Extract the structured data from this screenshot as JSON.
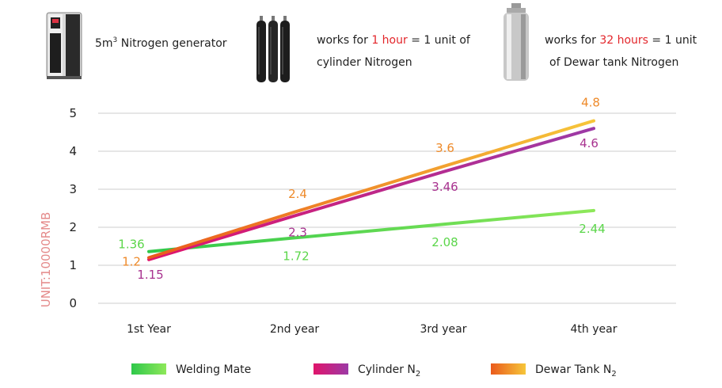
{
  "header": {
    "generator_label_prefix": "5m",
    "generator_label_sup": "3",
    "generator_label_suffix": " Nitrogen generator",
    "cylinder_text_a": "works for ",
    "cylinder_text_highlight": "1 hour",
    "cylinder_text_b": " = 1 unit of",
    "cylinder_text_line2": "cylinder Nitrogen",
    "dewar_text_a": "works for ",
    "dewar_text_highlight": "32 hours",
    "dewar_text_b": " = 1 unit",
    "dewar_text_line2": "of Dewar tank Nitrogen"
  },
  "colors": {
    "highlight": "#e3262b",
    "welding": "#6ee04f",
    "cylinder": "#c0308e",
    "dewar": "#f3a229",
    "grid": "#d6d6d6",
    "ylabel": "#e48a8a"
  },
  "chart_data": {
    "type": "line",
    "categories": [
      "1st Year",
      "2nd year",
      "3rd year",
      "4th year"
    ],
    "ylabel": "UNIT:10000RMB",
    "ylim": [
      0,
      5
    ],
    "yticks": [
      "0",
      "1",
      "2",
      "3",
      "4",
      "5"
    ],
    "grid": true,
    "legend": "bottom",
    "series": [
      {
        "name": "Welding Mate",
        "sub": "",
        "values": [
          1.36,
          1.72,
          2.08,
          2.44
        ],
        "labels": [
          "1.36",
          "1.72",
          "2.08",
          "2.44"
        ],
        "color_start": "#2fc84a",
        "color_end": "#8ee85a",
        "label_color": "#5bd64a"
      },
      {
        "name": "Cylinder N",
        "sub": "2",
        "values": [
          1.15,
          2.3,
          3.46,
          4.6
        ],
        "labels": [
          "1.15",
          "2.3",
          "3.46",
          "4.6"
        ],
        "color_start": "#e0146b",
        "color_end": "#9c3aa6",
        "label_color": "#a8328f"
      },
      {
        "name": "Dewar Tank N",
        "sub": "2",
        "values": [
          1.2,
          2.4,
          3.6,
          4.8
        ],
        "labels": [
          "1.2",
          "2.4",
          "3.6",
          "4.8"
        ],
        "color_start": "#ea5a1c",
        "color_end": "#f6c63a",
        "label_color": "#ee8a2a"
      }
    ]
  }
}
